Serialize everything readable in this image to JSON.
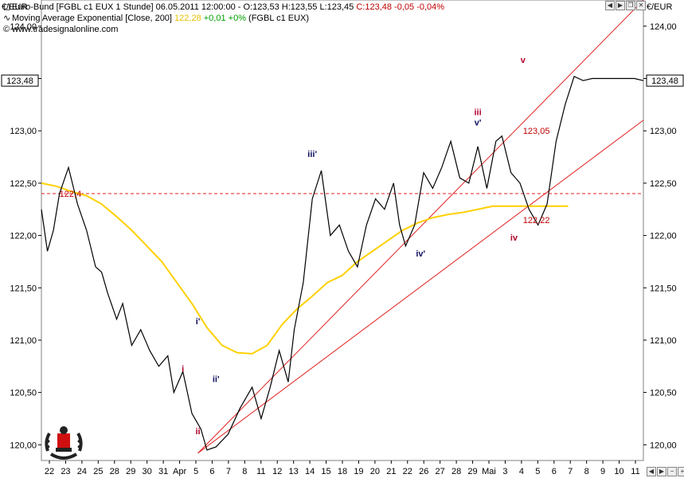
{
  "header": {
    "line1_symbol": "Euro-Bund [FGBL c1 EUX  1 Stunde] 06.05.2011 12:00:00 - O:123,53 H:123,55 L:123,45 ",
    "line1_close": "C:123,48 -0,05 -0,04%",
    "line2_name": "Moving Average Exponential [Close, 200] ",
    "line2_value": "122,28",
    "line2_change": " +0,01 +0%",
    "line2_source": " (FGBL c1 EUX)",
    "line3": "© www.tradesignalonline.com"
  },
  "unit_left": "€/EUR",
  "unit_right": "€/EUR",
  "icons": {
    "window_buttons": [
      "arrow-left-icon",
      "arrow-right-icon",
      "restore-icon",
      "close-icon"
    ],
    "scroll_buttons": [
      "scroll-left-icon",
      "scroll-right-icon",
      "zoom-out-icon",
      "zoom-in-icon"
    ],
    "logo": "bull-bear-logo"
  },
  "colors": {
    "price": "#000000",
    "ema": "#ffd000",
    "trendline": "#e02020",
    "wave_red": "#b0002a",
    "wave_navy": "#101060"
  },
  "chart_data": {
    "type": "line",
    "title": "Euro-Bund [FGBL c1 EUX  1 Stunde]",
    "y_label_left": "€/EUR",
    "y_label_right": "€/EUR",
    "ylim": [
      119.85,
      124.25
    ],
    "y_ticks": [
      "124,00",
      "123,50",
      "123,00",
      "122,50",
      "122,00",
      "121,50",
      "121,00",
      "120,50",
      "120,00"
    ],
    "y_tick_values": [
      124.0,
      123.5,
      123.0,
      122.5,
      122.0,
      121.5,
      121.0,
      120.5,
      120.0
    ],
    "x_labels": [
      "22",
      "23",
      "24",
      "25",
      "28",
      "29",
      "30",
      "31",
      "Apr",
      "5",
      "6",
      "7",
      "8",
      "11",
      "12",
      "13",
      "14",
      "15",
      "18",
      "19",
      "20",
      "21",
      "22",
      "26",
      "27",
      "28",
      "29",
      "Mai",
      "3",
      "4",
      "5",
      "6",
      "7",
      "8",
      "9",
      "10",
      "11"
    ],
    "last_price": "123,48",
    "last_price_value": 123.48,
    "reference_level": 122.4,
    "series": [
      {
        "name": "Euro-Bund [FGBL c1 EUX  1 Stunde]",
        "x": [
          0,
          2,
          4,
          6,
          9,
          12,
          15,
          18,
          20,
          22,
          25,
          27,
          30,
          33,
          36,
          39,
          42,
          44,
          47,
          50,
          53,
          55,
          58,
          62,
          66,
          70,
          73,
          76,
          79,
          82,
          84,
          87,
          90,
          93,
          96,
          99,
          102,
          105,
          108,
          111,
          114,
          117,
          119,
          121,
          124,
          127,
          130,
          133,
          136,
          139,
          142,
          145,
          148,
          151,
          153,
          156,
          159,
          162,
          165,
          168,
          171,
          174,
          177,
          180,
          183,
          186,
          189,
          191,
          193,
          195,
          197,
          200
        ],
        "values": [
          122.25,
          121.85,
          122.05,
          122.4,
          122.65,
          122.3,
          122.05,
          121.7,
          121.65,
          121.45,
          121.2,
          121.35,
          120.95,
          121.1,
          120.9,
          120.75,
          120.85,
          120.5,
          120.7,
          120.3,
          120.15,
          119.95,
          119.98,
          120.1,
          120.35,
          120.55,
          120.25,
          120.55,
          120.9,
          120.6,
          121.1,
          121.55,
          122.35,
          122.62,
          122.0,
          122.1,
          121.85,
          121.7,
          122.1,
          122.35,
          122.25,
          122.5,
          122.1,
          121.9,
          122.1,
          122.6,
          122.45,
          122.65,
          122.9,
          122.55,
          122.5,
          122.85,
          122.45,
          122.9,
          122.95,
          122.6,
          122.5,
          122.25,
          122.1,
          122.3,
          122.9,
          123.25,
          123.52,
          123.48,
          123.5,
          123.5,
          123.5,
          123.5,
          123.5,
          123.5,
          123.5,
          123.48
        ]
      },
      {
        "name": "Moving Average Exponential [Close, 200]",
        "x": [
          0,
          5,
          10,
          15,
          20,
          25,
          30,
          35,
          40,
          45,
          50,
          55,
          60,
          65,
          70,
          75,
          80,
          85,
          90,
          95,
          100,
          105,
          110,
          115,
          120,
          125,
          130,
          135,
          140,
          145,
          150,
          155,
          160,
          165,
          170,
          175
        ],
        "values": [
          122.5,
          122.47,
          122.42,
          122.38,
          122.3,
          122.18,
          122.05,
          121.9,
          121.75,
          121.55,
          121.35,
          121.12,
          120.95,
          120.88,
          120.87,
          120.95,
          121.15,
          121.3,
          121.42,
          121.55,
          121.62,
          121.75,
          121.85,
          121.95,
          122.05,
          122.12,
          122.17,
          122.2,
          122.22,
          122.25,
          122.28,
          122.28,
          122.28,
          122.28,
          122.28,
          122.28
        ]
      }
    ],
    "trendlines": [
      {
        "x": [
          52,
          159
        ],
        "values": [
          119.92,
          122.22
        ]
      },
      {
        "x": [
          52,
          159
        ],
        "values": [
          119.92,
          123.05
        ]
      }
    ],
    "annotations": [
      {
        "text": "122,4",
        "x": 6,
        "y": 122.4,
        "color": "#c00000"
      },
      {
        "text": "123,05",
        "x": 160,
        "y": 123.0,
        "color": "#c00000"
      },
      {
        "text": "122,22",
        "x": 160,
        "y": 122.15,
        "color": "#c00000"
      }
    ],
    "wave_labels": [
      {
        "text": "i",
        "x": 47,
        "y": 120.7,
        "color": "#b0002a"
      },
      {
        "text": "ii",
        "x": 52,
        "y": 120.1,
        "color": "#b0002a"
      },
      {
        "text": "iii",
        "x": 145,
        "y": 123.15,
        "color": "#b0002a"
      },
      {
        "text": "iv",
        "x": 157,
        "y": 121.95,
        "color": "#b0002a"
      },
      {
        "text": "v",
        "x": 160,
        "y": 123.65,
        "color": "#b0002a"
      },
      {
        "text": "i'",
        "x": 52,
        "y": 121.15,
        "color": "#101060"
      },
      {
        "text": "ii'",
        "x": 58,
        "y": 120.6,
        "color": "#101060"
      },
      {
        "text": "iii'",
        "x": 90,
        "y": 122.75,
        "color": "#101060"
      },
      {
        "text": "iv'",
        "x": 126,
        "y": 121.8,
        "color": "#101060"
      },
      {
        "text": "v'",
        "x": 145,
        "y": 123.05,
        "color": "#101060"
      }
    ]
  }
}
